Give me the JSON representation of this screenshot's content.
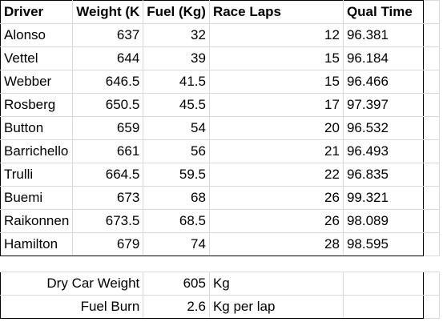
{
  "headers": [
    "Driver",
    "Weight (K",
    "Fuel (Kg)",
    "Race Laps",
    "Qual Time"
  ],
  "rows": [
    [
      "Alonso",
      "637",
      "32",
      "12",
      "96.381"
    ],
    [
      "Vettel",
      "644",
      "39",
      "15",
      "96.184"
    ],
    [
      "Webber",
      "646.5",
      "41.5",
      "15",
      "96.466"
    ],
    [
      "Rosberg",
      "650.5",
      "45.5",
      "17",
      "97.397"
    ],
    [
      "Button",
      "659",
      "54",
      "20",
      "96.532"
    ],
    [
      "Barrichello",
      "661",
      "56",
      "21",
      "96.493"
    ],
    [
      "Trulli",
      "664.5",
      "59.5",
      "22",
      "96.835"
    ],
    [
      "Buemi",
      "673",
      "68",
      "26",
      "99.321"
    ],
    [
      "Raikonnen",
      "673.5",
      "68.5",
      "26",
      "98.089"
    ],
    [
      "Hamilton",
      "679",
      "74",
      "28",
      "98.595"
    ]
  ],
  "footer": {
    "dry_weight": {
      "label": "Dry Car Weight",
      "value": "605",
      "unit": "Kg"
    },
    "fuel_burn": {
      "label": "Fuel Burn",
      "value": "2.6",
      "unit": "Kg per lap"
    }
  }
}
